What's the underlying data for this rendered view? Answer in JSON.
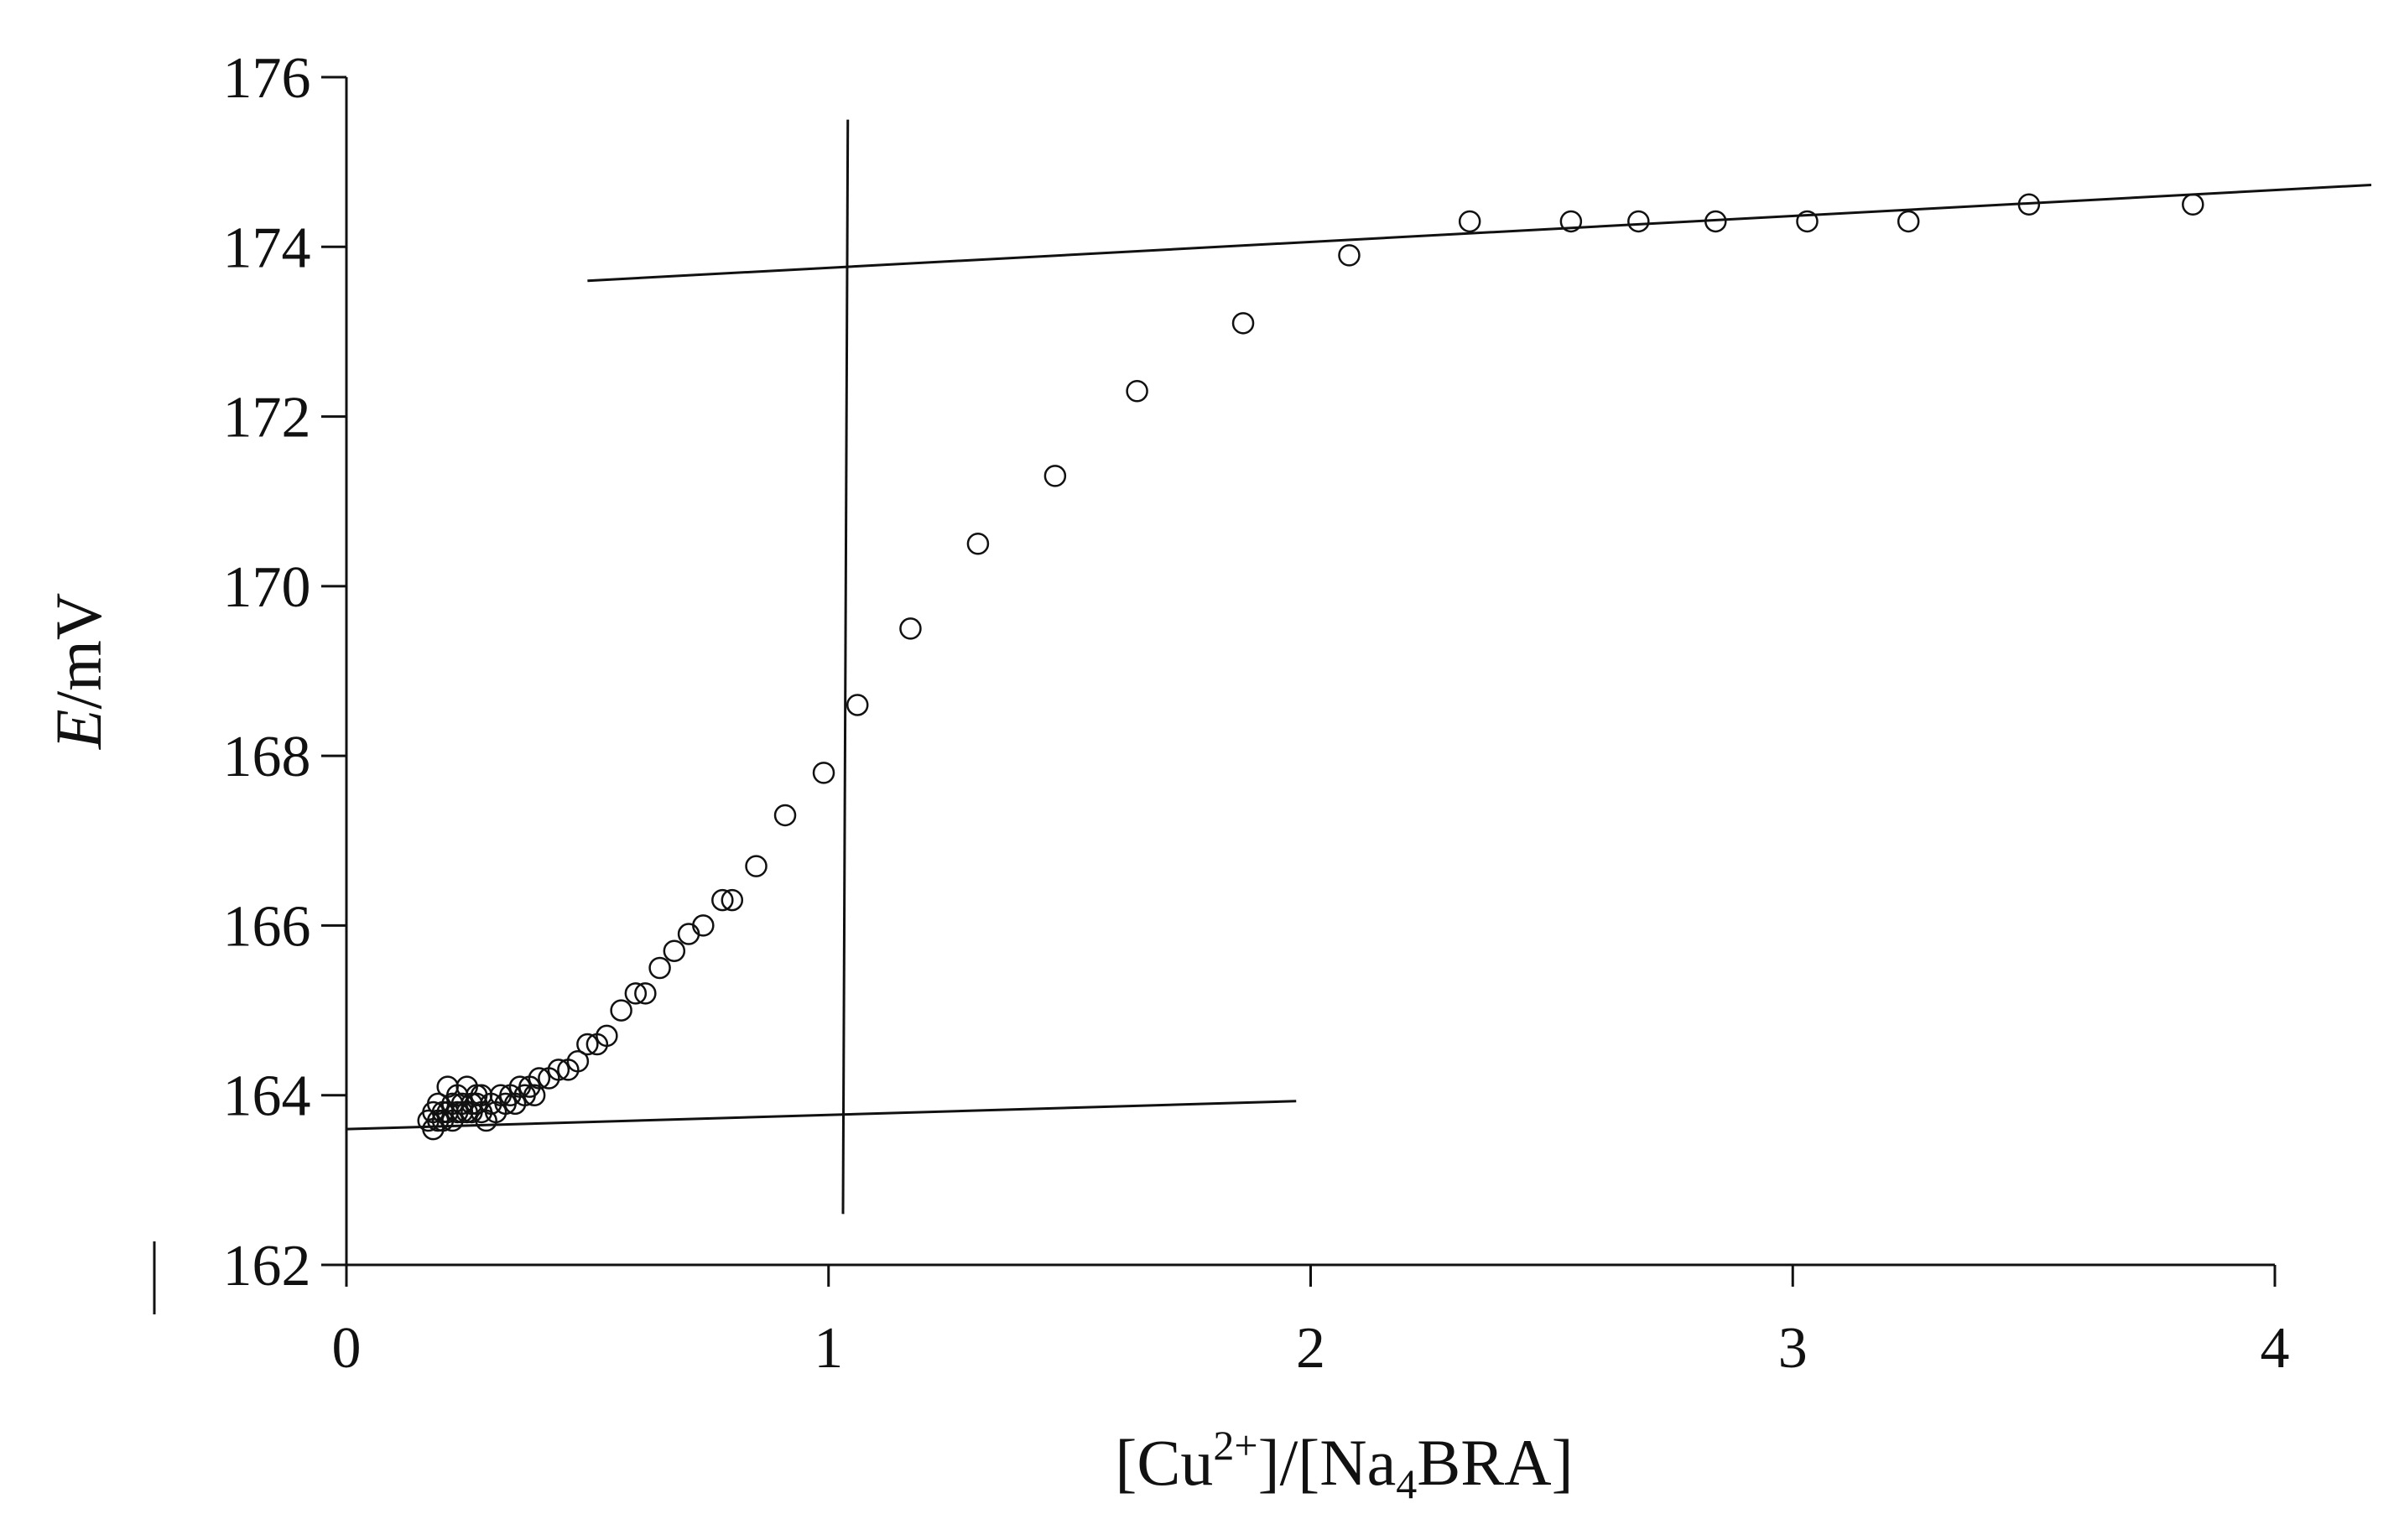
{
  "chart_data": {
    "type": "scatter",
    "title": "",
    "xlabel_parts": {
      "a": "[Cu",
      "sup": "2+",
      "b": "]/[Na",
      "sub": "4",
      "c": "BRA]"
    },
    "ylabel_parts": {
      "italic": "E",
      "rest": "/mV"
    },
    "xlim": [
      0,
      4
    ],
    "ylim": [
      162,
      176
    ],
    "x_ticks": [
      "0",
      "1",
      "2",
      "3",
      "4"
    ],
    "y_ticks": [
      "162",
      "164",
      "166",
      "168",
      "170",
      "172",
      "174",
      "176"
    ],
    "grid": false,
    "marker": "open-circle",
    "line_color": "#111111",
    "series": [
      {
        "x": [
          0.17,
          0.18,
          0.18,
          0.19,
          0.19,
          0.2,
          0.2,
          0.21,
          0.21,
          0.22,
          0.22,
          0.23,
          0.23,
          0.24,
          0.24,
          0.25,
          0.25,
          0.26,
          0.26,
          0.27,
          0.27,
          0.28,
          0.28,
          0.29,
          0.3,
          0.31,
          0.32,
          0.33,
          0.34,
          0.35,
          0.36,
          0.37,
          0.38,
          0.39,
          0.4,
          0.42,
          0.44,
          0.46,
          0.48,
          0.5,
          0.52,
          0.54,
          0.57,
          0.6,
          0.62,
          0.65,
          0.68,
          0.71,
          0.74,
          0.78,
          0.8,
          0.85,
          0.91,
          0.99,
          1.06,
          1.17,
          1.31,
          1.47,
          1.64,
          1.86,
          2.08,
          2.33,
          2.54,
          2.68,
          2.84,
          3.03,
          3.24,
          3.49,
          3.83
        ],
        "y": [
          163.7,
          163.8,
          163.6,
          163.9,
          163.7,
          163.8,
          163.7,
          164.1,
          163.8,
          163.9,
          163.7,
          163.8,
          164.0,
          163.8,
          163.9,
          163.8,
          164.1,
          163.9,
          163.8,
          164.0,
          163.9,
          163.8,
          164.0,
          163.7,
          163.9,
          163.8,
          164.0,
          163.9,
          164.0,
          163.9,
          164.1,
          164.0,
          164.1,
          164.0,
          164.2,
          164.2,
          164.3,
          164.3,
          164.4,
          164.6,
          164.6,
          164.7,
          165.0,
          165.2,
          165.2,
          165.5,
          165.7,
          165.9,
          166.0,
          166.3,
          166.3,
          166.7,
          167.3,
          167.8,
          168.6,
          169.5,
          170.5,
          171.3,
          172.3,
          173.1,
          173.9,
          174.3,
          174.3,
          174.3,
          174.3,
          174.3,
          174.3,
          174.5,
          174.5
        ]
      }
    ],
    "fit_lines": [
      {
        "x1": 0.0,
        "y1": 163.6,
        "x2": 1.97,
        "y2": 163.93
      },
      {
        "x1": 0.5,
        "y1": 173.6,
        "x2": 4.2,
        "y2": 174.73
      },
      {
        "x1": 1.04,
        "y1": 175.5,
        "x2": 1.03,
        "y2": 162.6
      }
    ]
  }
}
